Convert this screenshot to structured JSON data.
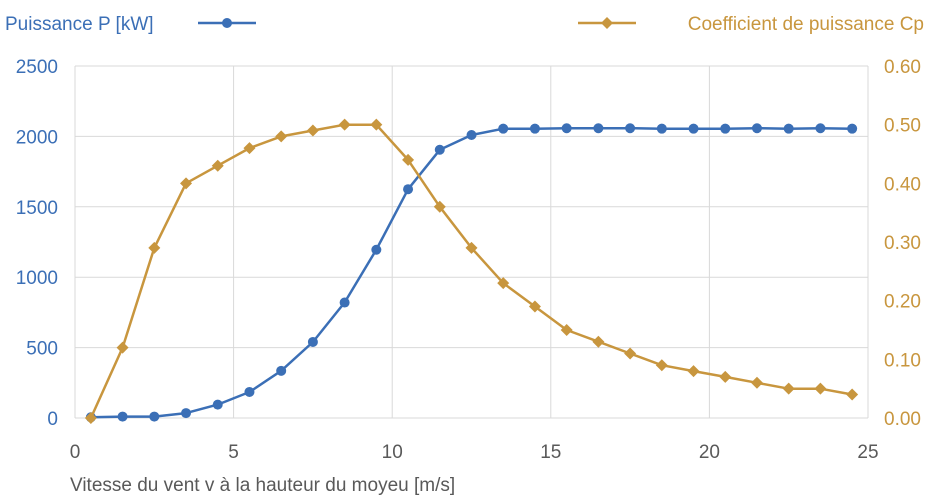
{
  "chart_data": {
    "type": "line",
    "xlabel": "Vitesse du vent v à la hauteur du moyeu [m/s]",
    "xlim": [
      0,
      25
    ],
    "x_ticks": [
      "0",
      "5",
      "10",
      "15",
      "20",
      "25"
    ],
    "y_left": {
      "lim": [
        0,
        2500
      ],
      "ticks": [
        "0",
        "500",
        "1000",
        "1500",
        "2000",
        "2500"
      ]
    },
    "y_right": {
      "lim": [
        0,
        0.6
      ],
      "ticks": [
        "0.00",
        "0.10",
        "0.20",
        "0.30",
        "0.40",
        "0.50",
        "0.60"
      ]
    },
    "grid": true,
    "legend_placement": "top",
    "series": [
      {
        "name": "Puissance P [kW]",
        "axis": "left",
        "marker": "circle",
        "color": "#3b6fb6",
        "x": [
          0.5,
          1.5,
          2.5,
          3.5,
          4.5,
          5.5,
          6.5,
          7.5,
          8.5,
          9.5,
          10.5,
          11.5,
          12.5,
          13.5,
          14.5,
          15.5,
          16.5,
          17.5,
          18.5,
          19.5,
          20.5,
          21.5,
          22.5,
          23.5,
          24.5
        ],
        "values": [
          5,
          10,
          10,
          35,
          95,
          185,
          335,
          540,
          820,
          1195,
          1625,
          1905,
          2010,
          2055,
          2055,
          2058,
          2058,
          2058,
          2055,
          2055,
          2055,
          2058,
          2055,
          2058,
          2055
        ]
      },
      {
        "name": "Coefficient de puissance Cp",
        "axis": "right",
        "marker": "diamond",
        "color": "#c8963e",
        "x": [
          0.5,
          1.5,
          2.5,
          3.5,
          4.5,
          5.5,
          6.5,
          7.5,
          8.5,
          9.5,
          10.5,
          11.5,
          12.5,
          13.5,
          14.5,
          15.5,
          16.5,
          17.5,
          18.5,
          19.5,
          20.5,
          21.5,
          22.5,
          23.5,
          24.5
        ],
        "values": [
          0.0,
          0.12,
          0.29,
          0.4,
          0.43,
          0.46,
          0.48,
          0.49,
          0.5,
          0.5,
          0.44,
          0.36,
          0.29,
          0.23,
          0.19,
          0.15,
          0.13,
          0.11,
          0.09,
          0.08,
          0.07,
          0.06,
          0.05,
          0.05,
          0.04
        ]
      }
    ]
  }
}
